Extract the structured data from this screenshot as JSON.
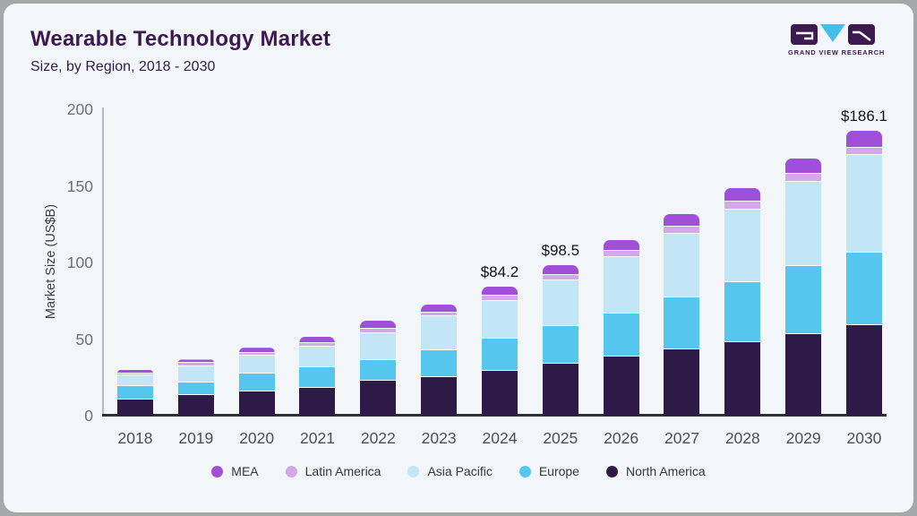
{
  "header": {
    "title": "Wearable Technology Market",
    "subtitle": "Size, by Region, 2018 - 2030"
  },
  "logo": {
    "text": "GRAND VIEW RESEARCH",
    "block_color": "#3d1952",
    "triangle_color": "#45bfe8"
  },
  "chart_data": {
    "type": "bar",
    "stacked": true,
    "title": "Wearable Technology Market Size, by Region, 2018 - 2030",
    "ylabel": "Market Size (US$B)",
    "xlabel": "",
    "ylim": [
      0,
      200
    ],
    "yticks": [
      0,
      50,
      100,
      150,
      200
    ],
    "grid": false,
    "legend_position": "bottom",
    "categories": [
      "2018",
      "2019",
      "2020",
      "2021",
      "2022",
      "2023",
      "2024",
      "2025",
      "2026",
      "2027",
      "2028",
      "2029",
      "2030"
    ],
    "series": [
      {
        "name": "North America",
        "color": "#2e1a47",
        "values": [
          10.7,
          13.4,
          16.0,
          18.3,
          22.6,
          25.0,
          29.5,
          33.8,
          38.4,
          43.5,
          48.2,
          53.2,
          58.9
        ]
      },
      {
        "name": "Europe",
        "color": "#55c7ef",
        "values": [
          8.4,
          8.5,
          11.6,
          13.3,
          14.0,
          17.9,
          20.6,
          24.9,
          28.5,
          33.5,
          39.0,
          44.3,
          47.8
        ]
      },
      {
        "name": "Asia Pacific",
        "color": "#c3e6f7",
        "values": [
          7.0,
          10.6,
          11.8,
          13.7,
          17.5,
          21.8,
          25.0,
          29.6,
          36.4,
          42.0,
          47.4,
          55.0,
          63.8
        ]
      },
      {
        "name": "Latin America",
        "color": "#d2a8e8",
        "values": [
          1.6,
          1.8,
          1.7,
          2.3,
          2.7,
          2.7,
          3.5,
          3.7,
          4.3,
          4.5,
          5.2,
          5.2,
          4.7
        ]
      },
      {
        "name": "MEA",
        "color": "#a050d8",
        "values": [
          2.3,
          2.4,
          3.3,
          4.2,
          5.1,
          5.1,
          5.6,
          6.5,
          7.0,
          8.0,
          8.8,
          10.4,
          10.9
        ]
      }
    ],
    "legend_order": [
      "MEA",
      "Latin America",
      "Asia Pacific",
      "Europe",
      "North America"
    ],
    "annotations": [
      {
        "category": "2024",
        "label": "$84.2"
      },
      {
        "category": "2025",
        "label": "$98.5"
      },
      {
        "category": "2030",
        "label": "$186.1"
      }
    ]
  }
}
